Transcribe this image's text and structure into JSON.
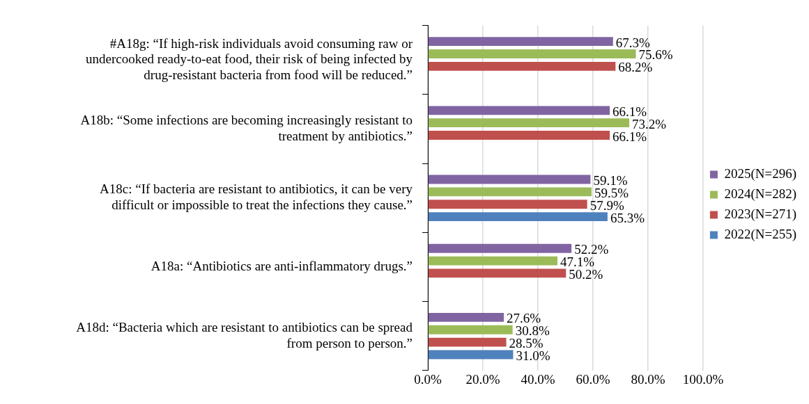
{
  "chart_data": {
    "type": "bar",
    "orientation": "horizontal",
    "categories": [
      "#A18g: “If high-risk individuals avoid consuming raw or undercooked ready-to-eat food, their risk of being infected by drug-resistant bacteria from food will be reduced.”",
      "A18b: “Some infections are becoming increasingly resistant to treatment by antibiotics.”",
      "A18c: “If bacteria are resistant to antibiotics, it can be very difficult or impossible to treat the infections they cause.”",
      "A18a: “Antibiotics are anti-inflammatory drugs.”",
      "A18d: “Bacteria which are resistant to antibiotics can be spread from person to person.”"
    ],
    "series": [
      {
        "name": "2025(N=296)",
        "color": "#8064a2",
        "values": [
          67.3,
          66.1,
          59.1,
          52.2,
          27.6
        ],
        "value_labels": [
          "67.3%",
          "66.1%",
          "59.1%",
          "52.2%",
          "27.6%"
        ]
      },
      {
        "name": "2024(N=282)",
        "color": "#9bbb59",
        "values": [
          75.6,
          73.2,
          59.5,
          47.1,
          30.8
        ],
        "value_labels": [
          "75.6%",
          "73.2%",
          "59.5%",
          "47.1%",
          "30.8%"
        ]
      },
      {
        "name": "2023(N=271)",
        "color": "#c0504d",
        "values": [
          68.2,
          66.1,
          57.9,
          50.2,
          28.5
        ],
        "value_labels": [
          "68.2%",
          "66.1%",
          "57.9%",
          "50.2%",
          "28.5%"
        ]
      },
      {
        "name": "2022(N=255)",
        "color": "#4f81bd",
        "values": [
          null,
          null,
          65.3,
          null,
          31.0
        ],
        "value_labels": [
          null,
          null,
          "65.3%",
          null,
          "31.0%"
        ]
      }
    ],
    "xlim": [
      0,
      100
    ],
    "xticks": [
      {
        "value": 0,
        "label": "0.0%"
      },
      {
        "value": 20,
        "label": "20.0%"
      },
      {
        "value": 40,
        "label": "40.0%"
      },
      {
        "value": 60,
        "label": "60.0%"
      },
      {
        "value": 80,
        "label": "80.0%"
      },
      {
        "value": 100,
        "label": "100.0%"
      }
    ],
    "grid": "x",
    "legend": "right"
  }
}
